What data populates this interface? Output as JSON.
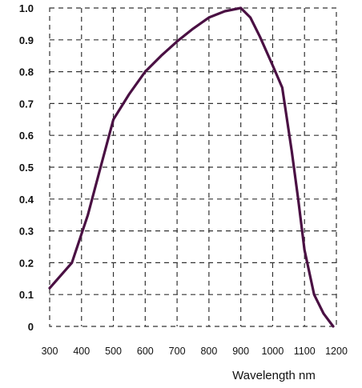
{
  "chart_data": {
    "type": "line",
    "title": "",
    "xlabel": "Wavelength nm",
    "ylabel": "",
    "xlim": [
      300,
      1200
    ],
    "ylim": [
      0,
      1.0
    ],
    "grid": true,
    "x_ticks": [
      "300",
      "400",
      "500",
      "600",
      "700",
      "800",
      "900",
      "1000",
      "1100",
      "1200"
    ],
    "y_ticks": [
      "0",
      "0.1",
      "0.2",
      "0.3",
      "0.4",
      "0.5",
      "0.6",
      "0.7",
      "0.8",
      "0.9",
      "1.0"
    ],
    "series": [
      {
        "color": "#4a1043",
        "x": [
          300,
          370,
          420,
          460,
          500,
          550,
          600,
          650,
          700,
          750,
          800,
          850,
          900,
          930,
          960,
          1000,
          1030,
          1060,
          1080,
          1100,
          1130,
          1160,
          1190
        ],
        "y": [
          0.12,
          0.2,
          0.35,
          0.5,
          0.65,
          0.73,
          0.8,
          0.85,
          0.895,
          0.935,
          0.97,
          0.99,
          1.0,
          0.97,
          0.91,
          0.82,
          0.75,
          0.55,
          0.4,
          0.24,
          0.1,
          0.04,
          0.0
        ]
      }
    ]
  }
}
